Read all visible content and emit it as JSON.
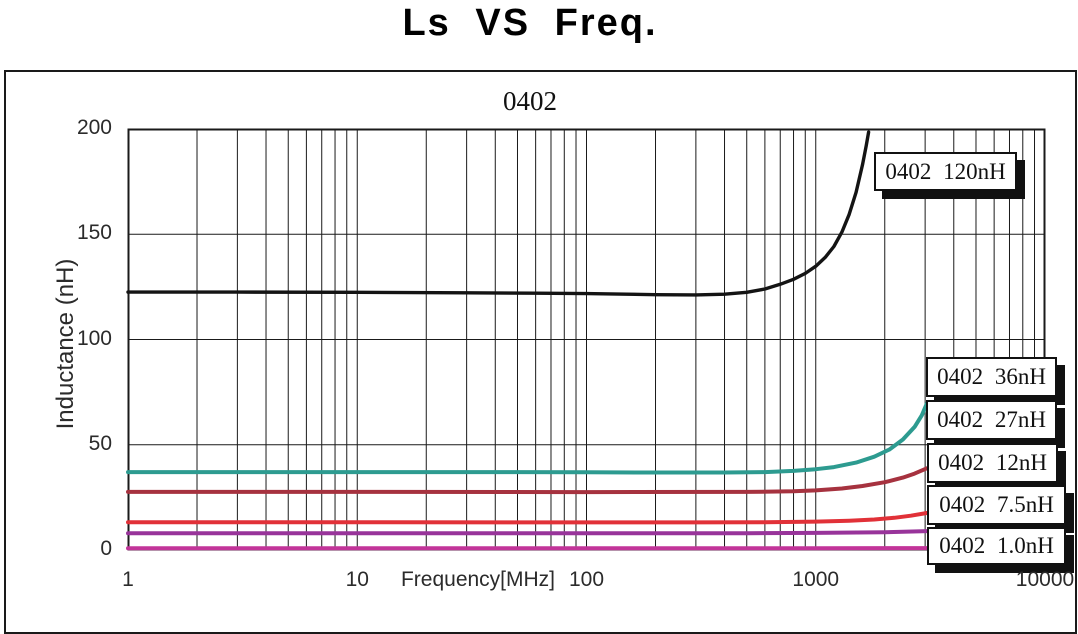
{
  "title": "Ls VS Freq.",
  "chart_data": {
    "type": "line",
    "title": "Ls VS Freq.",
    "subtitle": "0402",
    "xlabel": "Frequency[MHz]",
    "ylabel": "Inductance (nH)",
    "x_scale": "log",
    "xlim": [
      1,
      10000
    ],
    "ylim": [
      0,
      200
    ],
    "x_ticks": [
      1,
      10,
      100,
      1000,
      10000
    ],
    "y_ticks": [
      0,
      50,
      100,
      150,
      200
    ],
    "grid": "log minor vertical lines each decade; horizontal major lines every 50 nH",
    "legend_position": "right, framed boxes with drop shadow",
    "series": [
      {
        "name": "0402 120nH",
        "color": "#141414",
        "width": 3.4,
        "points": [
          [
            1,
            122.5
          ],
          [
            3,
            122.5
          ],
          [
            10,
            122.4
          ],
          [
            30,
            122.2
          ],
          [
            60,
            122.0
          ],
          [
            100,
            121.8
          ],
          [
            150,
            121.5
          ],
          [
            200,
            121.3
          ],
          [
            300,
            121.2
          ],
          [
            400,
            121.5
          ],
          [
            500,
            122.4
          ],
          [
            600,
            124.0
          ],
          [
            700,
            126.2
          ],
          [
            800,
            128.6
          ],
          [
            900,
            131.4
          ],
          [
            1000,
            134.8
          ],
          [
            1100,
            139.0
          ],
          [
            1200,
            144.2
          ],
          [
            1300,
            151.0
          ],
          [
            1400,
            159.5
          ],
          [
            1500,
            170.0
          ],
          [
            1600,
            183.0
          ],
          [
            1660,
            192.0
          ],
          [
            1700,
            198.5
          ]
        ]
      },
      {
        "name": "0402 36nH",
        "color": "#2d9b90",
        "width": 4,
        "points": [
          [
            1,
            37.0
          ],
          [
            5,
            37.0
          ],
          [
            10,
            37.0
          ],
          [
            50,
            37.0
          ],
          [
            100,
            36.9
          ],
          [
            200,
            36.8
          ],
          [
            400,
            36.8
          ],
          [
            600,
            37.0
          ],
          [
            800,
            37.6
          ],
          [
            1000,
            38.4
          ],
          [
            1200,
            39.4
          ],
          [
            1500,
            41.5
          ],
          [
            1800,
            44.3
          ],
          [
            2100,
            47.8
          ],
          [
            2400,
            52.5
          ],
          [
            2700,
            58.5
          ],
          [
            2900,
            64.0
          ],
          [
            3050,
            69.5
          ]
        ]
      },
      {
        "name": "0402 27nH",
        "color": "#a6323f",
        "width": 4,
        "points": [
          [
            1,
            27.6
          ],
          [
            10,
            27.6
          ],
          [
            100,
            27.5
          ],
          [
            500,
            27.6
          ],
          [
            800,
            27.9
          ],
          [
            1000,
            28.3
          ],
          [
            1300,
            29.2
          ],
          [
            1600,
            30.4
          ],
          [
            2000,
            32.2
          ],
          [
            2400,
            34.4
          ],
          [
            2700,
            36.3
          ],
          [
            3050,
            38.8
          ]
        ]
      },
      {
        "name": "0402 12nH",
        "color": "#e13138",
        "width": 4,
        "points": [
          [
            1,
            13.2
          ],
          [
            10,
            13.2
          ],
          [
            100,
            13.1
          ],
          [
            300,
            13.1
          ],
          [
            600,
            13.2
          ],
          [
            1000,
            13.5
          ],
          [
            1400,
            13.9
          ],
          [
            1800,
            14.5
          ],
          [
            2200,
            15.3
          ],
          [
            2600,
            16.3
          ],
          [
            3050,
            17.6
          ]
        ]
      },
      {
        "name": "0402 7.5nH",
        "color": "#98349a",
        "width": 4,
        "points": [
          [
            1,
            8.0
          ],
          [
            10,
            8.0
          ],
          [
            100,
            8.0
          ],
          [
            500,
            8.0
          ],
          [
            1000,
            8.1
          ],
          [
            2000,
            8.4
          ],
          [
            3050,
            9.0
          ]
        ]
      },
      {
        "name": "0402 1.0nH",
        "color": "#c23499",
        "width": 4,
        "points": [
          [
            1,
            0.8
          ],
          [
            10,
            0.8
          ],
          [
            100,
            0.8
          ],
          [
            1000,
            0.8
          ],
          [
            3050,
            0.9
          ]
        ]
      }
    ]
  }
}
